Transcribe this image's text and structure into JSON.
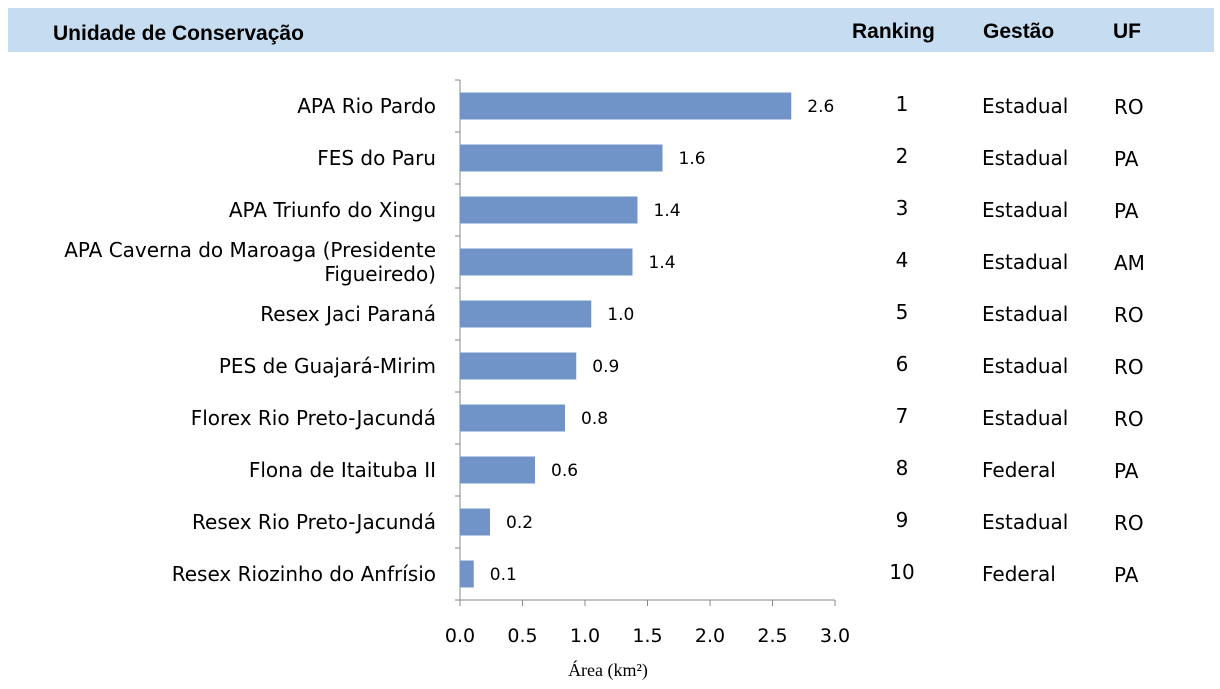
{
  "header": {
    "unit_label": "Unidade de Conservação",
    "ranking_label": "Ranking",
    "gestao_label": "Gestão",
    "uf_label": "UF"
  },
  "chart_data": {
    "type": "bar",
    "orientation": "horizontal",
    "categories": [
      "APA  Rio Pardo",
      "FES do Paru",
      "APA  Triunfo do Xingu",
      "APA  Caverna do Maroaga (Presidente Figueiredo)",
      "Resex Jaci Paraná",
      "PES de Guajará-Mirim",
      "Florex  Rio Preto-Jacundá",
      "Flona de Itaituba II",
      "Resex  Rio Preto-Jacundá",
      "Resex  Riozinho do Anfrísio"
    ],
    "category_lines": [
      [
        "APA  Rio Pardo"
      ],
      [
        "FES do Paru"
      ],
      [
        "APA  Triunfo do Xingu"
      ],
      [
        "APA  Caverna do Maroaga (Presidente",
        "Figueiredo)"
      ],
      [
        "Resex Jaci Paraná"
      ],
      [
        "PES de Guajará-Mirim"
      ],
      [
        "Florex  Rio Preto-Jacundá"
      ],
      [
        "Flona de Itaituba II"
      ],
      [
        "Resex  Rio Preto-Jacundá"
      ],
      [
        "Resex  Riozinho do Anfrísio"
      ]
    ],
    "values": [
      2.65,
      1.62,
      1.42,
      1.38,
      1.05,
      0.93,
      0.84,
      0.6,
      0.24,
      0.11
    ],
    "value_labels": [
      "2.6",
      "1.6",
      "1.4",
      "1.4",
      "1.0",
      "0.9",
      "0.8",
      "0.6",
      "0.2",
      "0.1"
    ],
    "xlabel": "Área (km²)",
    "xlim": [
      0,
      3.0
    ],
    "xticks": [
      "0.0",
      "0.5",
      "1.0",
      "1.5",
      "2.0",
      "2.5",
      "3.0"
    ],
    "bar_color": "#7094c8",
    "grid": false
  },
  "table": {
    "rows": [
      {
        "ranking": "1",
        "gestao": "Estadual",
        "uf": "RO"
      },
      {
        "ranking": "2",
        "gestao": "Estadual",
        "uf": "PA"
      },
      {
        "ranking": "3",
        "gestao": "Estadual",
        "uf": "PA"
      },
      {
        "ranking": "4",
        "gestao": "Estadual",
        "uf": "AM"
      },
      {
        "ranking": "5",
        "gestao": "Estadual",
        "uf": "RO"
      },
      {
        "ranking": "6",
        "gestao": "Estadual",
        "uf": "RO"
      },
      {
        "ranking": "7",
        "gestao": "Estadual",
        "uf": "RO"
      },
      {
        "ranking": "8",
        "gestao": "Federal",
        "uf": "PA"
      },
      {
        "ranking": "9",
        "gestao": "Estadual",
        "uf": "RO"
      },
      {
        "ranking": "10",
        "gestao": "Federal",
        "uf": "PA"
      }
    ]
  }
}
